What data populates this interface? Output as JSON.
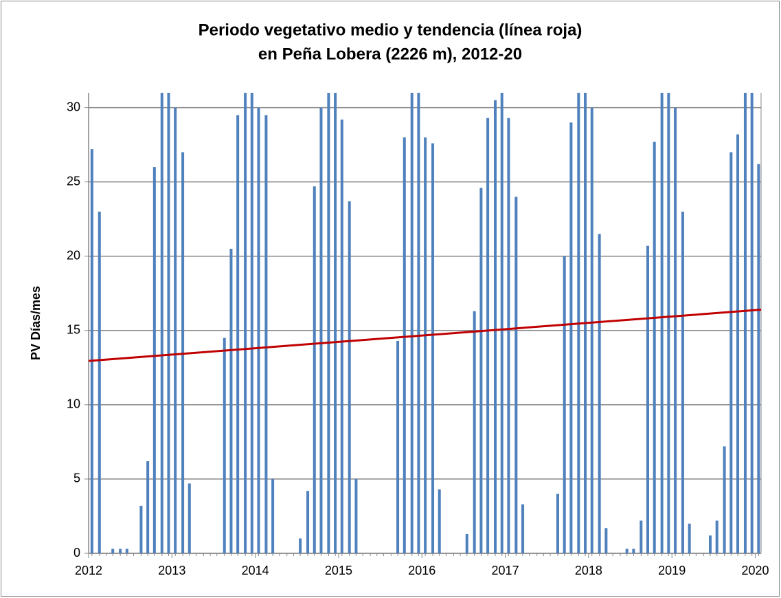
{
  "chart_data": {
    "type": "bar",
    "title": [
      "Periodo vegetativo medio y tendencia (línea roja)",
      "en Peña Lobera (2226 m), 2012-20"
    ],
    "y_label": "PV Días/mes",
    "xlim": [
      2012,
      2020.07
    ],
    "xticks": [
      2012,
      2013,
      2014,
      2015,
      2016,
      2017,
      2018,
      2019,
      2020
    ],
    "ylim": [
      0,
      31
    ],
    "yticks": [
      0,
      5,
      10,
      15,
      20,
      25,
      30
    ],
    "grid": true,
    "x": [
      2012.04,
      2012.13,
      2012.21,
      2012.29,
      2012.38,
      2012.46,
      2012.54,
      2012.63,
      2012.71,
      2012.79,
      2012.88,
      2012.96,
      2013.04,
      2013.13,
      2013.21,
      2013.29,
      2013.38,
      2013.46,
      2013.54,
      2013.63,
      2013.71,
      2013.79,
      2013.88,
      2013.96,
      2014.04,
      2014.13,
      2014.21,
      2014.29,
      2014.38,
      2014.46,
      2014.54,
      2014.63,
      2014.71,
      2014.79,
      2014.88,
      2014.96,
      2015.04,
      2015.13,
      2015.21,
      2015.29,
      2015.38,
      2015.46,
      2015.54,
      2015.63,
      2015.71,
      2015.79,
      2015.88,
      2015.96,
      2016.04,
      2016.13,
      2016.21,
      2016.29,
      2016.38,
      2016.46,
      2016.54,
      2016.63,
      2016.71,
      2016.79,
      2016.88,
      2016.96,
      2017.04,
      2017.13,
      2017.21,
      2017.29,
      2017.38,
      2017.46,
      2017.54,
      2017.63,
      2017.71,
      2017.79,
      2017.88,
      2017.96,
      2018.04,
      2018.13,
      2018.21,
      2018.29,
      2018.38,
      2018.46,
      2018.54,
      2018.63,
      2018.71,
      2018.79,
      2018.88,
      2018.96,
      2019.04,
      2019.13,
      2019.21,
      2019.29,
      2019.38,
      2019.46,
      2019.54,
      2019.63,
      2019.71,
      2019.79,
      2019.88,
      2019.96,
      2020.04
    ],
    "series": [
      {
        "type": "bar",
        "color": "#4f81bd",
        "values": [
          27.2,
          23,
          0,
          0.3,
          0.3,
          0.3,
          0,
          3.2,
          6.2,
          26,
          31,
          31,
          30,
          27,
          4.7,
          0,
          0,
          0,
          0,
          14.5,
          20.5,
          29.5,
          31,
          31,
          30,
          29.5,
          5,
          0,
          0,
          0,
          1,
          4.2,
          24.7,
          30,
          31,
          31,
          29.2,
          23.7,
          5,
          0,
          0,
          0,
          0,
          0,
          14.3,
          28,
          31,
          31,
          28,
          27.6,
          4.3,
          0,
          0,
          0,
          1.3,
          16.3,
          24.6,
          29.3,
          30.5,
          31,
          29.3,
          24,
          3.3,
          0,
          0,
          0,
          0,
          4,
          20,
          29,
          31,
          31,
          30,
          21.5,
          1.7,
          0,
          0,
          0.3,
          0.3,
          2.2,
          20.7,
          27.7,
          31,
          31,
          30,
          23,
          2,
          0,
          0,
          1.2,
          2.2,
          7.2,
          27,
          28.2,
          31,
          31,
          26.2
        ]
      },
      {
        "type": "line",
        "color": "#c00000",
        "x": [
          2012,
          2020.07
        ],
        "values": [
          12.95,
          16.4
        ]
      }
    ]
  }
}
